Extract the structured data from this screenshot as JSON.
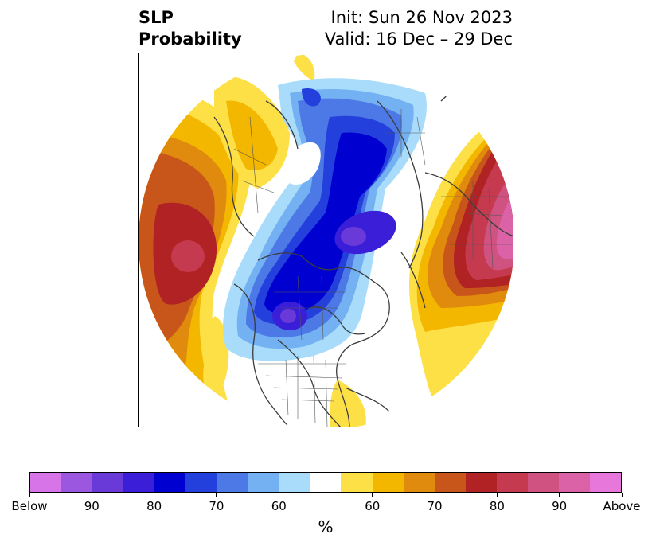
{
  "title": {
    "left_line1": "SLP",
    "left_line2": "Probability",
    "right_line1": "Init: Sun 26 Nov 2023",
    "right_line2": "Valid: 16 Dec – 29 Dec"
  },
  "map": {
    "projection": "north-polar-stereographic",
    "features": [
      "continent-outlines",
      "country-borders",
      "us-state-borders",
      "canada-province-borders"
    ],
    "anomalies": [
      {
        "name": "pacific-high-probability",
        "category": "Above",
        "peak_percent": 85
      },
      {
        "name": "eurasia-high-probability",
        "category": "Above",
        "peak_percent": "Above 90"
      },
      {
        "name": "north-atlantic-high-probability",
        "category": "Above",
        "peak_percent": 70
      },
      {
        "name": "arctic-canada-low-probability",
        "category": "Below",
        "peak_percent": 90
      },
      {
        "name": "siberia-low-probability",
        "category": "Below",
        "peak_percent": 80
      }
    ]
  },
  "colorbar": {
    "unit": "%",
    "colors": [
      "#d674e8",
      "#9b57e0",
      "#6a3ad8",
      "#3a1ed8",
      "#0000d0",
      "#2440dc",
      "#4d79e6",
      "#74b1f2",
      "#a8dcfa",
      "#ffffff",
      "#fde046",
      "#f3b700",
      "#e08b0d",
      "#c8561a",
      "#b02224",
      "#c63a50",
      "#cf5280",
      "#dc62a8",
      "#e877dc"
    ],
    "tick_labels": [
      "Below",
      "90",
      "80",
      "70",
      "60",
      "60",
      "70",
      "80",
      "90",
      "Above"
    ]
  }
}
